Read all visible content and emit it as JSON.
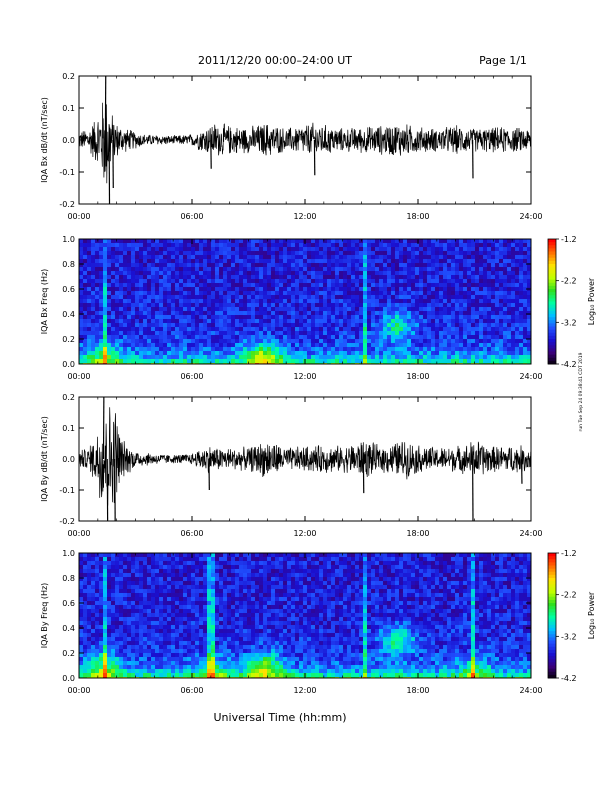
{
  "header": {
    "title": "2011/12/20  00:00–24:00 UT",
    "page": "Page 1/1"
  },
  "side_note": "run Tue Sep 24 09:38:41 CDT 2019",
  "xlabel": "Universal Time (hh:mm)",
  "colors": {
    "trace": "#000000",
    "frame": "#000000"
  },
  "colorbar": {
    "label": "Log₁₀ Power",
    "ticks": [
      "-1.2",
      "-2.2",
      "-3.2",
      "-4.2"
    ],
    "range": [
      -4.2,
      -1.2
    ],
    "colormap": [
      "#000000",
      "#3a0078",
      "#1a10d0",
      "#2050ff",
      "#00c0ff",
      "#00ffa0",
      "#30e020",
      "#c0ff00",
      "#ffe000",
      "#ff7000",
      "#ff0000"
    ]
  },
  "chart_data": [
    {
      "type": "line",
      "ylabel": "IQA Bx dB/dt (nT/sec)",
      "x_ticks": [
        "00:00",
        "06:00",
        "12:00",
        "18:00",
        "24:00"
      ],
      "y_ticks": [
        "0.2",
        "0.1",
        "0.0",
        "-0.1",
        "-0.2"
      ],
      "ylim": [
        -0.2,
        0.2
      ],
      "xlim": [
        0,
        24
      ],
      "x_unit": "hours UT",
      "envelope": [
        [
          0,
          0.03
        ],
        [
          0.5,
          0.04
        ],
        [
          0.9,
          0.08
        ],
        [
          1.2,
          0.12
        ],
        [
          1.4,
          0.2
        ],
        [
          1.7,
          0.1
        ],
        [
          2.0,
          0.06
        ],
        [
          2.5,
          0.04
        ],
        [
          3.5,
          0.02
        ],
        [
          5,
          0.015
        ],
        [
          6,
          0.02
        ],
        [
          6.5,
          0.04
        ],
        [
          7.2,
          0.06
        ],
        [
          8,
          0.05
        ],
        [
          9,
          0.045
        ],
        [
          10,
          0.06
        ],
        [
          11,
          0.04
        ],
        [
          12.5,
          0.06
        ],
        [
          13.2,
          0.05
        ],
        [
          14,
          0.04
        ],
        [
          15,
          0.045
        ],
        [
          16,
          0.05
        ],
        [
          17,
          0.06
        ],
        [
          18,
          0.045
        ],
        [
          19,
          0.04
        ],
        [
          20,
          0.05
        ],
        [
          21,
          0.04
        ],
        [
          22.5,
          0.045
        ],
        [
          24,
          0.04
        ]
      ],
      "spikes": [
        [
          1.4,
          0.2
        ],
        [
          1.6,
          -0.2
        ],
        [
          1.8,
          -0.15
        ],
        [
          7.0,
          -0.09
        ],
        [
          12.5,
          -0.11
        ],
        [
          20.9,
          -0.12
        ]
      ]
    },
    {
      "type": "heatmap",
      "ylabel": "IQA Bx Freq (Hz)",
      "x_ticks": [
        "00:00",
        "06:00",
        "12:00",
        "18:00",
        "24:00"
      ],
      "y_ticks": [
        "1.0",
        "0.8",
        "0.6",
        "0.4",
        "0.2",
        "0.0"
      ],
      "ylim": [
        0.0,
        1.0
      ],
      "xlim": [
        0,
        24
      ],
      "lines": [
        1.3,
        15.1
      ],
      "blobs": [
        [
          1.3,
          0.05,
          0.6
        ],
        [
          9.8,
          0.05,
          1.0
        ],
        [
          16.9,
          0.3,
          0.7
        ]
      ]
    },
    {
      "type": "line",
      "ylabel": "IQA By dB/dt (nT/sec)",
      "x_ticks": [
        "00:00",
        "06:00",
        "12:00",
        "18:00",
        "24:00"
      ],
      "y_ticks": [
        "0.2",
        "0.1",
        "0.0",
        "-0.1",
        "-0.2"
      ],
      "ylim": [
        -0.2,
        0.2
      ],
      "xlim": [
        0,
        24
      ],
      "x_unit": "hours UT",
      "envelope": [
        [
          0,
          0.03
        ],
        [
          0.5,
          0.04
        ],
        [
          0.9,
          0.09
        ],
        [
          1.2,
          0.18
        ],
        [
          1.5,
          0.2
        ],
        [
          1.9,
          0.2
        ],
        [
          2.3,
          0.07
        ],
        [
          3,
          0.03
        ],
        [
          4,
          0.02
        ],
        [
          5,
          0.015
        ],
        [
          6,
          0.02
        ],
        [
          6.8,
          0.05
        ],
        [
          7.5,
          0.04
        ],
        [
          9,
          0.04
        ],
        [
          10,
          0.07
        ],
        [
          11,
          0.04
        ],
        [
          12,
          0.045
        ],
        [
          13,
          0.05
        ],
        [
          14,
          0.045
        ],
        [
          15.2,
          0.07
        ],
        [
          16,
          0.045
        ],
        [
          17.3,
          0.07
        ],
        [
          18,
          0.05
        ],
        [
          19,
          0.04
        ],
        [
          20.5,
          0.05
        ],
        [
          21,
          0.07
        ],
        [
          22,
          0.045
        ],
        [
          23,
          0.05
        ],
        [
          24,
          0.045
        ]
      ],
      "spikes": [
        [
          1.3,
          0.2
        ],
        [
          1.5,
          -0.2
        ],
        [
          1.9,
          -0.2
        ],
        [
          6.9,
          -0.1
        ],
        [
          15.1,
          -0.11
        ],
        [
          20.9,
          -0.2
        ],
        [
          23.5,
          -0.08
        ]
      ]
    },
    {
      "type": "heatmap",
      "ylabel": "IQA By Freq (Hz)",
      "x_ticks": [
        "00:00",
        "06:00",
        "12:00",
        "18:00",
        "24:00"
      ],
      "y_ticks": [
        "1.0",
        "0.8",
        "0.6",
        "0.4",
        "0.2",
        "0.0"
      ],
      "ylim": [
        0.0,
        1.0
      ],
      "xlim": [
        0,
        24
      ],
      "lines": [
        1.3,
        7.0,
        15.1,
        20.9
      ],
      "blobs": [
        [
          1.3,
          0.08,
          0.8
        ],
        [
          7.0,
          0.05,
          0.6
        ],
        [
          9.8,
          0.08,
          1.0
        ],
        [
          16.9,
          0.3,
          0.8
        ],
        [
          21.0,
          0.05,
          0.5
        ]
      ]
    }
  ]
}
